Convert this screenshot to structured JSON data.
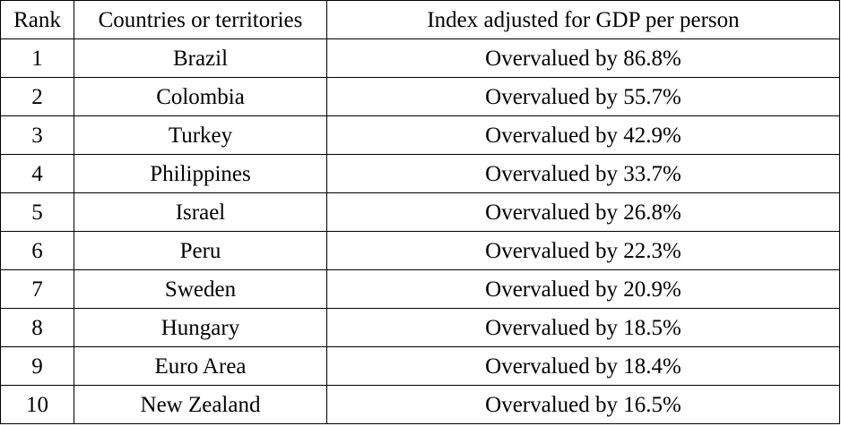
{
  "table": {
    "headers": {
      "rank": "Rank",
      "country": "Countries or territories",
      "index": "Index adjusted for GDP per person"
    },
    "rows": [
      {
        "rank": "1",
        "country": "Brazil",
        "index": "Overvalued by 86.8%"
      },
      {
        "rank": "2",
        "country": "Colombia",
        "index": "Overvalued by 55.7%"
      },
      {
        "rank": "3",
        "country": "Turkey",
        "index": "Overvalued by 42.9%"
      },
      {
        "rank": "4",
        "country": "Philippines",
        "index": "Overvalued by 33.7%"
      },
      {
        "rank": "5",
        "country": "Israel",
        "index": "Overvalued by 26.8%"
      },
      {
        "rank": "6",
        "country": "Peru",
        "index": "Overvalued by 22.3%"
      },
      {
        "rank": "7",
        "country": "Sweden",
        "index": "Overvalued by 20.9%"
      },
      {
        "rank": "8",
        "country": "Hungary",
        "index": "Overvalued by 18.5%"
      },
      {
        "rank": "9",
        "country": "Euro Area",
        "index": "Overvalued by 18.4%"
      },
      {
        "rank": "10",
        "country": "New Zealand",
        "index": "Overvalued by 16.5%"
      }
    ]
  }
}
